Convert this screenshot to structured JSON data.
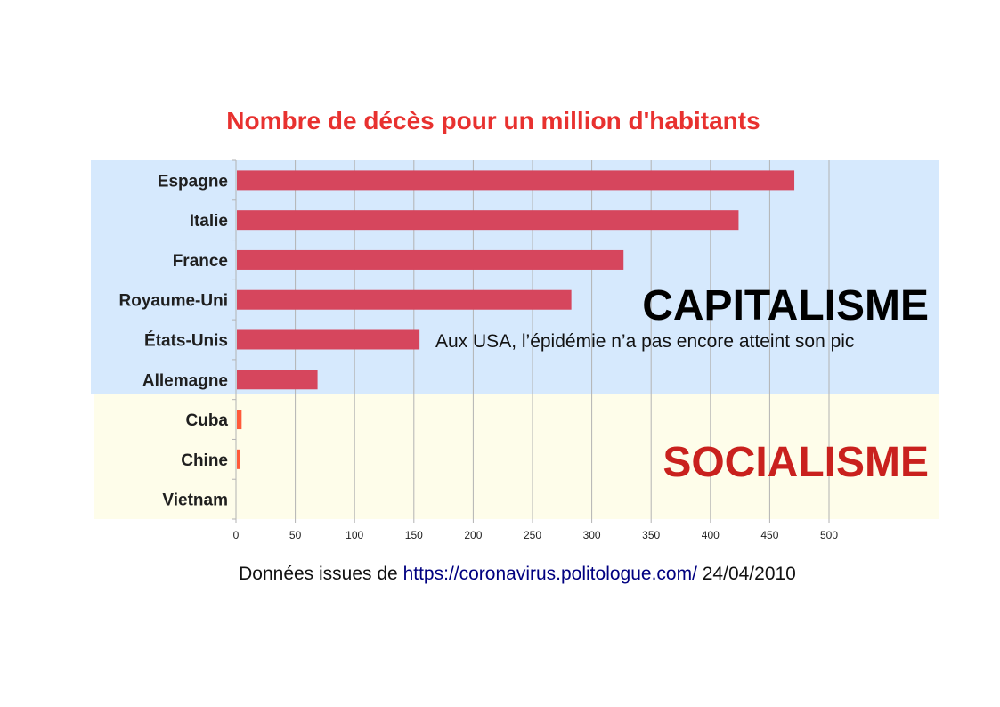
{
  "colors": {
    "title": "#e8312f",
    "capitalism_band": "#d6e9fd",
    "socialism_band": "#fefdea",
    "capitalism_bar": "#d6465d",
    "socialism_bar": "#ff5a3a",
    "capitalism_text": "#000000",
    "socialism_text": "#c9211e",
    "link": "#000080"
  },
  "annotations": {
    "capitalism": "CAPITALISME",
    "socialism": "SOCIALISME",
    "usa_note": "Aux USA, l’épidémie n’a pas encore atteint son pic"
  },
  "source": {
    "prefix": "Données issues de ",
    "link": "https://coronavirus.politologue.com/",
    "date": " 24/04/2010"
  },
  "chart_data": {
    "type": "bar",
    "orientation": "horizontal",
    "title": "Nombre de décès pour un million d'habitants",
    "xlabel": "",
    "ylabel": "",
    "categories": [
      "Espagne",
      "Italie",
      "France",
      "Royaume-Uni",
      "États-Unis",
      "Allemagne",
      "Cuba",
      "Chine",
      "Vietnam"
    ],
    "values": [
      470,
      423,
      326,
      282,
      154,
      68,
      4,
      3,
      0
    ],
    "groups": [
      "capitalism",
      "capitalism",
      "capitalism",
      "capitalism",
      "capitalism",
      "capitalism",
      "socialism",
      "socialism",
      "socialism"
    ],
    "xlim": [
      0,
      500
    ],
    "xticks": [
      0,
      50,
      100,
      150,
      200,
      250,
      300,
      350,
      400,
      450,
      500
    ],
    "grid": true,
    "legend": "none"
  }
}
